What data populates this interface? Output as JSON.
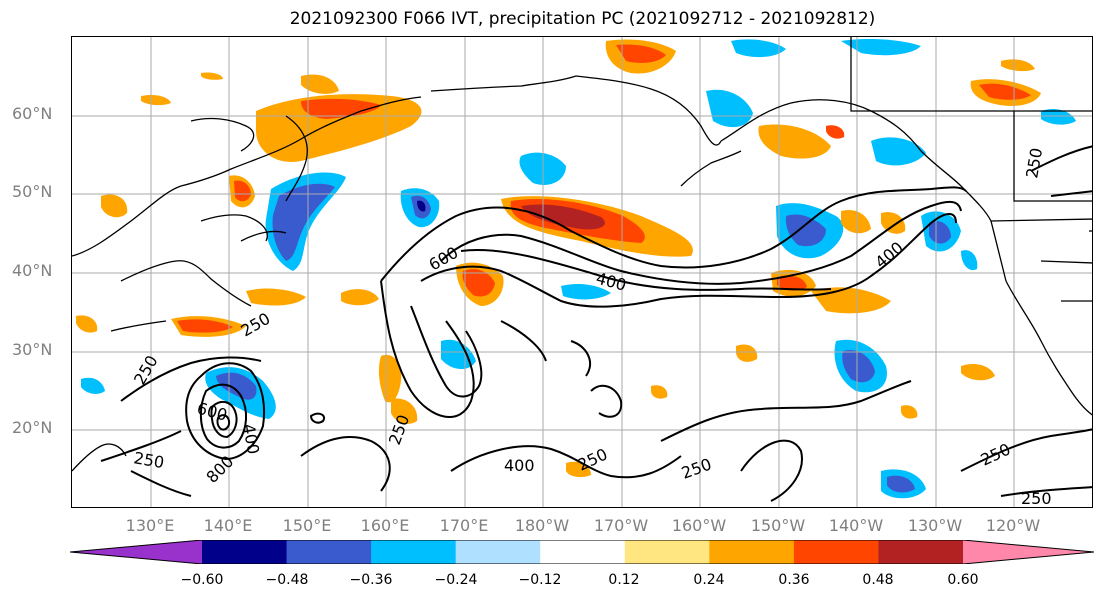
{
  "title": "2021092300 F066 IVT, precipitation PC (2021092712 - 2021092812)",
  "lat_labels": [
    "60°N",
    "50°N",
    "40°N",
    "30°N",
    "20°N"
  ],
  "lon_labels": [
    "130°E",
    "140°E",
    "150°E",
    "160°E",
    "170°E",
    "180°W",
    "170°W",
    "160°W",
    "150°W",
    "140°W",
    "130°W",
    "120°W"
  ],
  "colorbar": {
    "colors": [
      "#9932cc",
      "#00008b",
      "#3a5bcd",
      "#00bfff",
      "#b0e0ff",
      "#ffffff",
      "#ffe680",
      "#ffa500",
      "#ff4500",
      "#b22222",
      "#ff88aa"
    ],
    "ticks": [
      "−0.60",
      "−0.48",
      "−0.36",
      "−0.24",
      "−0.12",
      "0.12",
      "0.24",
      "0.36",
      "0.48",
      "0.60"
    ]
  },
  "contour_labels": [
    "600",
    "400",
    "400",
    "250",
    "250",
    "600",
    "400",
    "800",
    "250",
    "250",
    "400",
    "250",
    "250",
    "250",
    "250",
    "250",
    "250"
  ]
}
